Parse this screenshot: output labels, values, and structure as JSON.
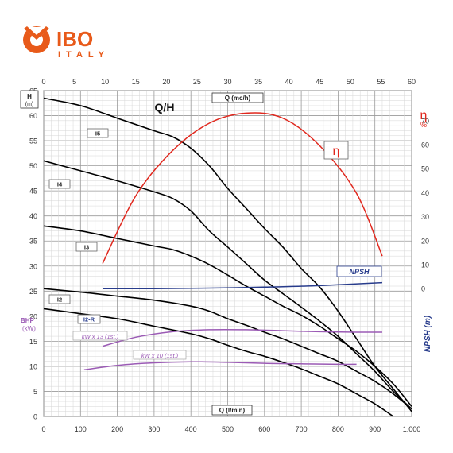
{
  "logo": {
    "brand": "IBO",
    "sub": "ITALY"
  },
  "chart_data": {
    "type": "line",
    "title": "Q/H",
    "x_top": {
      "label": "Q (mc/h)",
      "min": 0,
      "max": 60,
      "ticks": [
        0,
        5,
        10,
        15,
        20,
        25,
        30,
        35,
        40,
        45,
        50,
        55,
        60
      ]
    },
    "x_bottom": {
      "label": "Q (l/min)",
      "min": 0,
      "max": 1000,
      "ticks": [
        0,
        100,
        200,
        300,
        400,
        500,
        600,
        700,
        800,
        900,
        1000
      ],
      "tick_labels": [
        "0",
        "100",
        "200",
        "300",
        "400",
        "500",
        "600",
        "700",
        "800",
        "900",
        "1.000"
      ]
    },
    "y_left": {
      "label": "H",
      "unit": "(m)",
      "min": 0,
      "max": 65,
      "ticks": [
        0,
        5,
        10,
        15,
        20,
        25,
        30,
        35,
        40,
        45,
        50,
        55,
        60,
        65
      ]
    },
    "y_right_eff": {
      "label": "η",
      "unit": "%",
      "min": 0,
      "max": 80,
      "ticks": [
        0,
        10,
        20,
        30,
        40,
        50,
        60,
        70
      ]
    },
    "y_right_npsh": {
      "label": "NPSH (m)"
    },
    "bhp_label": {
      "label": "BHP",
      "unit": "(kW)"
    },
    "series": [
      {
        "name": "I5",
        "color": "#000000",
        "x": [
          0,
          100,
          200,
          300,
          350,
          400,
          450,
          500,
          550,
          600,
          650,
          700,
          750,
          800,
          850,
          900,
          950,
          1000
        ],
        "y": [
          63.5,
          62,
          59.5,
          57,
          55.8,
          53.5,
          50,
          45.5,
          41.5,
          37.5,
          33.8,
          29.5,
          25.8,
          21,
          15.5,
          10,
          5.5,
          1
        ]
      },
      {
        "name": "I4",
        "color": "#000000",
        "x": [
          0,
          100,
          200,
          300,
          350,
          400,
          450,
          500,
          550,
          600,
          650,
          700,
          750,
          800,
          850,
          900,
          950,
          1000
        ],
        "y": [
          51,
          49,
          47,
          44.8,
          43.5,
          41,
          37,
          33.8,
          30.5,
          27.2,
          24.5,
          21.8,
          19,
          16,
          12.5,
          9,
          5,
          1.5
        ]
      },
      {
        "name": "I3",
        "color": "#000000",
        "x": [
          0,
          100,
          200,
          300,
          350,
          400,
          450,
          500,
          550,
          600,
          650,
          700,
          750,
          800,
          850,
          900,
          950,
          1000
        ],
        "y": [
          38,
          37,
          35.5,
          34,
          33.3,
          32,
          30.3,
          28.2,
          26,
          24,
          22,
          20.2,
          18,
          15.5,
          13,
          10,
          6.5,
          2
        ]
      },
      {
        "name": "I2",
        "color": "#000000",
        "x": [
          0,
          100,
          200,
          300,
          400,
          450,
          500,
          550,
          600,
          650,
          700,
          750,
          800,
          850,
          900,
          950,
          1000
        ],
        "y": [
          25.5,
          24.8,
          24,
          23.2,
          22,
          21,
          19.5,
          18.2,
          16.8,
          15.5,
          14,
          12.5,
          11,
          9,
          7,
          4.5,
          1.5
        ]
      },
      {
        "name": "I2-R",
        "color": "#000000",
        "x": [
          0,
          100,
          200,
          300,
          400,
          450,
          500,
          550,
          600,
          650,
          700,
          750,
          800,
          850,
          900,
          950
        ],
        "y": [
          21.5,
          20.5,
          19.5,
          18,
          16.5,
          15.5,
          14.2,
          13,
          12,
          10.8,
          9.5,
          8,
          6.5,
          4.5,
          2.5,
          0
        ]
      },
      {
        "name": "η",
        "color": "#e0281e",
        "axis": "eff",
        "x": [
          160,
          250,
          350,
          450,
          550,
          650,
          750,
          850,
          920
        ],
        "y": [
          30.5,
          44,
          53,
          58.5,
          60.5,
          59.5,
          54,
          44.5,
          32
        ]
      },
      {
        "name": "NPSH",
        "color": "#283c8c",
        "x": [
          160,
          300,
          450,
          600,
          750,
          920
        ],
        "y": [
          25.5,
          25.5,
          25.6,
          25.8,
          26.1,
          26.7
        ]
      },
      {
        "name": "kW x 13 (1st.)",
        "color": "#9b5bb5",
        "x": [
          160,
          250,
          350,
          450,
          550,
          650,
          750,
          850,
          920
        ],
        "y": [
          14,
          15.8,
          16.9,
          17.3,
          17.3,
          17.1,
          16.9,
          16.8,
          16.8
        ]
      },
      {
        "name": "kW x 10 (1st.)",
        "color": "#9b5bb5",
        "x": [
          110,
          200,
          300,
          400,
          500,
          600,
          700,
          800,
          850
        ],
        "y": [
          9.3,
          10.2,
          10.7,
          10.9,
          10.8,
          10.6,
          10.5,
          10.4,
          10.4
        ]
      }
    ],
    "grid": true
  }
}
